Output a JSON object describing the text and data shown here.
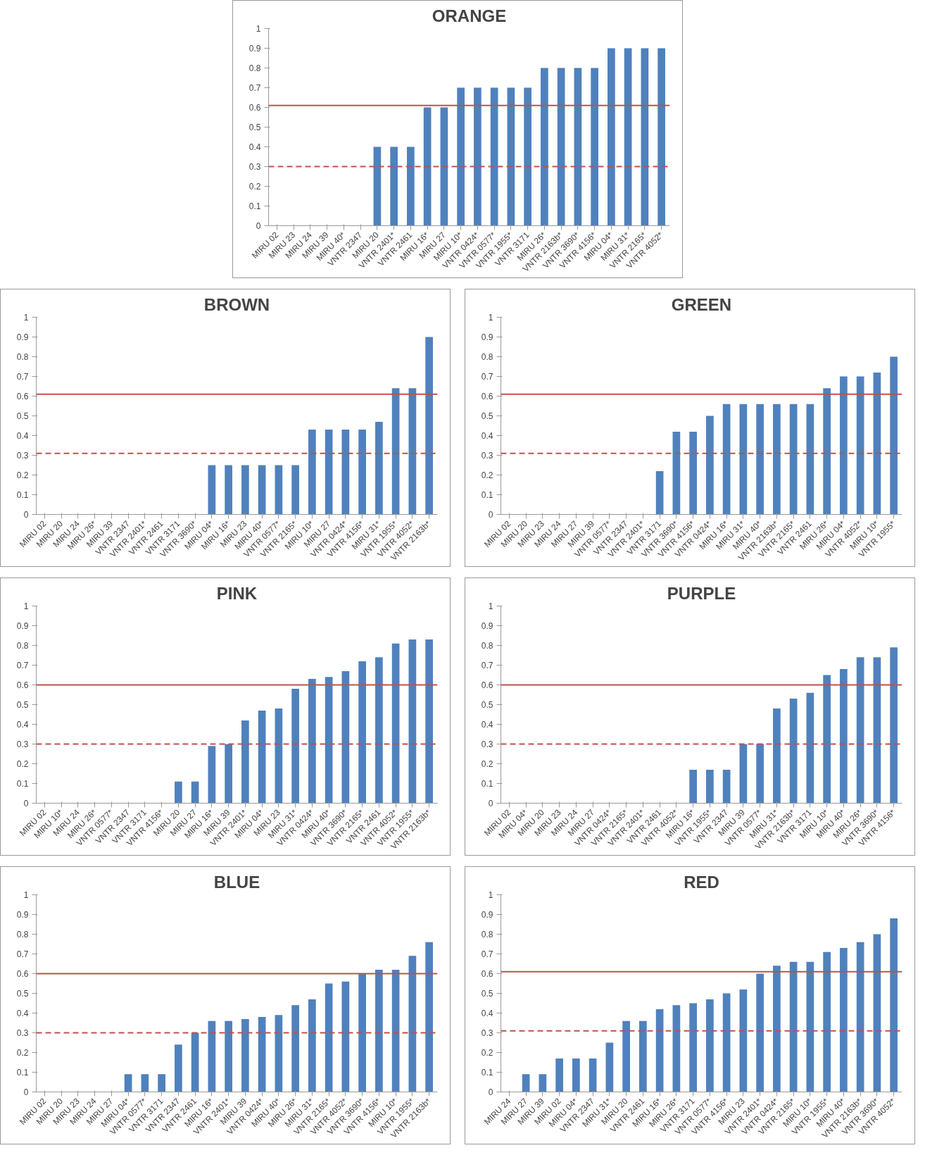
{
  "chart_data": [
    {
      "type": "bar",
      "title": "ORANGE",
      "categories": [
        "MIRU 02",
        "MIRU 23",
        "MIRU 24",
        "MIRU 39",
        "MIRU 40*",
        "VNTR 2347",
        "MIRU 20",
        "VNTR 2401*",
        "VNTR 2461",
        "MIRU 16*",
        "MIRU 27",
        "MIRU 10*",
        "VNTR 0424*",
        "VNTR 0577*",
        "VNTR 1955*",
        "VNTR 3171",
        "MIRU 26*",
        "VNTR 2163b*",
        "VNTR 3690*",
        "VNTR 4156*",
        "MIRU 04*",
        "MIRU 31*",
        "VNTR 2165*",
        "VNTR 4052*"
      ],
      "values": [
        0,
        0,
        0,
        0,
        0,
        0,
        0.4,
        0.4,
        0.4,
        0.6,
        0.6,
        0.7,
        0.7,
        0.7,
        0.7,
        0.7,
        0.8,
        0.8,
        0.8,
        0.8,
        0.9,
        0.9,
        0.9,
        0.9
      ],
      "color": "#4f81bd",
      "ylim": [
        0,
        1
      ],
      "yticks": [
        0,
        0.1,
        0.2,
        0.3,
        0.4,
        0.5,
        0.6,
        0.7,
        0.8,
        0.9,
        1
      ],
      "grid": false,
      "ref_lines": [
        {
          "axis": "y",
          "value": 0.61,
          "color": "#c0504d",
          "line_style": "solid"
        },
        {
          "axis": "y",
          "value": 0.3,
          "color": "#c0504d",
          "line_style": "dashed"
        }
      ]
    },
    {
      "type": "bar",
      "title": "BROWN",
      "categories": [
        "MIRU 02",
        "MIRU 20",
        "MIRU 24",
        "MIRU 26*",
        "MIRU 39",
        "VNTR 2347",
        "VNTR 2401*",
        "VNTR 2461",
        "VNTR 3171",
        "VNTR 3690*",
        "MIRU 04*",
        "MIRU 16*",
        "MIRU 23",
        "MIRU 40*",
        "VNTR 0577*",
        "VNTR 2165*",
        "MIRU 10*",
        "MIRU 27",
        "VNTR 0424*",
        "VNTR 4156*",
        "MIRU 31*",
        "VNTR 1955*",
        "VNTR 4052*",
        "VNTR 2163b*"
      ],
      "values": [
        0,
        0,
        0,
        0,
        0,
        0,
        0,
        0,
        0,
        0,
        0.25,
        0.25,
        0.25,
        0.25,
        0.25,
        0.25,
        0.43,
        0.43,
        0.43,
        0.43,
        0.47,
        0.64,
        0.64,
        0.9
      ],
      "color": "#4f81bd",
      "ylim": [
        0,
        1
      ],
      "yticks": [
        0,
        0.1,
        0.2,
        0.3,
        0.4,
        0.5,
        0.6,
        0.7,
        0.8,
        0.9,
        1
      ],
      "grid": false,
      "ref_lines": [
        {
          "axis": "y",
          "value": 0.61,
          "color": "#c0504d",
          "line_style": "solid"
        },
        {
          "axis": "y",
          "value": 0.31,
          "color": "#c0504d",
          "line_style": "dashed"
        }
      ]
    },
    {
      "type": "bar",
      "title": "GREEN",
      "categories": [
        "MIRU 02",
        "MIRU 20",
        "MIRU 23",
        "MIRU 24",
        "MIRU 27",
        "MIRU 39",
        "VNTR 0577*",
        "VNTR 2347",
        "VNTR 2401*",
        "VNTR 3171",
        "VNTR 3690*",
        "VNTR 4156*",
        "VNTR 0424*",
        "MIRU 16*",
        "MIRU 31*",
        "MIRU 40*",
        "VNTR 2163b*",
        "VNTR 2165*",
        "VNTR 2461",
        "MIRU 26*",
        "MIRU 04*",
        "VNTR 4052*",
        "MIRU 10*",
        "VNTR 1955*"
      ],
      "values": [
        0,
        0,
        0,
        0,
        0,
        0,
        0,
        0,
        0,
        0.22,
        0.42,
        0.42,
        0.5,
        0.56,
        0.56,
        0.56,
        0.56,
        0.56,
        0.56,
        0.64,
        0.7,
        0.7,
        0.72,
        0.8
      ],
      "color": "#4f81bd",
      "ylim": [
        0,
        1
      ],
      "yticks": [
        0,
        0.1,
        0.2,
        0.3,
        0.4,
        0.5,
        0.6,
        0.7,
        0.8,
        0.9,
        1
      ],
      "grid": false,
      "ref_lines": [
        {
          "axis": "y",
          "value": 0.61,
          "color": "#c0504d",
          "line_style": "solid"
        },
        {
          "axis": "y",
          "value": 0.31,
          "color": "#c0504d",
          "line_style": "dashed"
        }
      ]
    },
    {
      "type": "bar",
      "title": "PINK",
      "categories": [
        "MIRU 02",
        "MIRU 10*",
        "MIRU 24",
        "MIRU 26*",
        "VNTR 0577*",
        "VNTR 2347",
        "VNTR 3171",
        "VNTR 4156*",
        "MIRU 20",
        "MIRU 27",
        "MIRU 16*",
        "MIRU 39",
        "VNTR 2401*",
        "MIRU 04*",
        "MIRU 23",
        "MIRU 31*",
        "VNTR 0424*",
        "MIRU 40*",
        "VNTR 3690*",
        "VNTR 2165*",
        "VNTR 2461",
        "VNTR 4052*",
        "VNTR 1955*",
        "VNTR 2163b*"
      ],
      "values": [
        0,
        0,
        0,
        0,
        0,
        0,
        0,
        0,
        0.11,
        0.11,
        0.29,
        0.3,
        0.42,
        0.47,
        0.48,
        0.58,
        0.63,
        0.64,
        0.67,
        0.72,
        0.74,
        0.81,
        0.83,
        0.83
      ],
      "color": "#4f81bd",
      "ylim": [
        0,
        1
      ],
      "yticks": [
        0,
        0.1,
        0.2,
        0.3,
        0.4,
        0.5,
        0.6,
        0.7,
        0.8,
        0.9,
        1
      ],
      "grid": false,
      "ref_lines": [
        {
          "axis": "y",
          "value": 0.6,
          "color": "#c0504d",
          "line_style": "solid"
        },
        {
          "axis": "y",
          "value": 0.3,
          "color": "#c0504d",
          "line_style": "dashed"
        }
      ]
    },
    {
      "type": "bar",
      "title": "PURPLE",
      "categories": [
        "MIRU 02",
        "MIRU 04*",
        "MIRU 20",
        "MIRU 23",
        "MIRU 24",
        "MIRU 27",
        "VNTR 0424*",
        "VNTR 2165*",
        "VNTR 2401*",
        "VNTR 2461",
        "VNTR 4052*",
        "MIRU 16*",
        "VNTR 1955*",
        "VNTR 2347",
        "MIRU 39",
        "VNTR 0577*",
        "MIRU 31*",
        "VNTR 2163b*",
        "VNTR 3171",
        "MIRU 10*",
        "MIRU 40*",
        "MIRU 26*",
        "VNTR 3690*",
        "VNTR 4156*"
      ],
      "values": [
        0,
        0,
        0,
        0,
        0,
        0,
        0,
        0,
        0,
        0,
        0,
        0.17,
        0.17,
        0.17,
        0.3,
        0.3,
        0.48,
        0.53,
        0.56,
        0.65,
        0.68,
        0.74,
        0.74,
        0.79
      ],
      "color": "#4f81bd",
      "ylim": [
        0,
        1
      ],
      "yticks": [
        0,
        0.1,
        0.2,
        0.3,
        0.4,
        0.5,
        0.6,
        0.7,
        0.8,
        0.9,
        1
      ],
      "grid": false,
      "ref_lines": [
        {
          "axis": "y",
          "value": 0.6,
          "color": "#c0504d",
          "line_style": "solid"
        },
        {
          "axis": "y",
          "value": 0.3,
          "color": "#c0504d",
          "line_style": "dashed"
        }
      ]
    },
    {
      "type": "bar",
      "title": "BLUE",
      "categories": [
        "MIRU 02",
        "MIRU 20",
        "MIRU 23",
        "MIRU 24",
        "MIRU 27",
        "MIRU 04*",
        "VNTR 0577*",
        "VNTR 3171",
        "VNTR 2347",
        "VNTR 2461",
        "MIRU 16*",
        "VNTR 2401*",
        "MIRU 39",
        "VNTR 0424*",
        "MIRU 40*",
        "MIRU 26*",
        "MIRU 31*",
        "VNTR 2165*",
        "VNTR 4052*",
        "VNTR 3690*",
        "VNTR 4156*",
        "MIRU 10*",
        "VNTR 1955*",
        "VNTR 2163b*"
      ],
      "values": [
        0,
        0,
        0,
        0,
        0,
        0.09,
        0.09,
        0.09,
        0.24,
        0.3,
        0.36,
        0.36,
        0.37,
        0.38,
        0.39,
        0.44,
        0.47,
        0.55,
        0.56,
        0.6,
        0.62,
        0.62,
        0.69,
        0.76
      ],
      "color": "#4f81bd",
      "ylim": [
        0,
        1
      ],
      "yticks": [
        0,
        0.1,
        0.2,
        0.3,
        0.4,
        0.5,
        0.6,
        0.7,
        0.8,
        0.9,
        1
      ],
      "grid": false,
      "ref_lines": [
        {
          "axis": "y",
          "value": 0.6,
          "color": "#c0504d",
          "line_style": "solid"
        },
        {
          "axis": "y",
          "value": 0.3,
          "color": "#c0504d",
          "line_style": "dashed"
        }
      ]
    },
    {
      "type": "bar",
      "title": "RED",
      "categories": [
        "MIRU 24",
        "MIRU 27",
        "MIRU 39",
        "MIRU 02",
        "MIRU 04*",
        "VNTR 2347",
        "MIRU 31*",
        "MIRU 20",
        "VNTR 2461",
        "MIRU 16*",
        "MIRU 26*",
        "VNTR 3171",
        "VNTR 0577*",
        "VNTR 4156*",
        "MIRU 23",
        "VNTR 2401*",
        "VNTR 0424*",
        "VNTR 2165*",
        "MIRU 10*",
        "VNTR 1955*",
        "MIRU 40*",
        "VNTR 2163b*",
        "VNTR 3690*",
        "VNTR 4052*"
      ],
      "values": [
        0,
        0.09,
        0.09,
        0.17,
        0.17,
        0.17,
        0.25,
        0.36,
        0.36,
        0.42,
        0.44,
        0.45,
        0.47,
        0.5,
        0.52,
        0.6,
        0.64,
        0.66,
        0.66,
        0.71,
        0.73,
        0.76,
        0.8,
        0.88
      ],
      "color": "#4f81bd",
      "ylim": [
        0,
        1
      ],
      "yticks": [
        0,
        0.1,
        0.2,
        0.3,
        0.4,
        0.5,
        0.6,
        0.7,
        0.8,
        0.9,
        1
      ],
      "grid": false,
      "ref_lines": [
        {
          "axis": "y",
          "value": 0.61,
          "color": "#c0504d",
          "line_style": "solid"
        },
        {
          "axis": "y",
          "value": 0.31,
          "color": "#c0504d",
          "line_style": "dashed"
        }
      ]
    }
  ]
}
